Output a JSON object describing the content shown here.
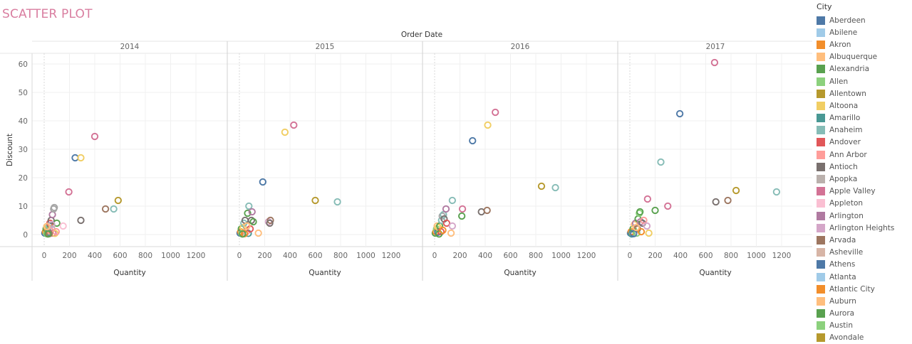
{
  "page": {
    "title": "SCATTER PLOT"
  },
  "chart_data": {
    "type": "scatter",
    "column_header": "Order Date",
    "xlabel": "Quantity",
    "ylabel": "Discount",
    "xlim": [
      -80,
      1230
    ],
    "ylim": [
      -3,
      65
    ],
    "x_ticks": [
      0,
      200,
      400,
      600,
      800,
      1000,
      1200
    ],
    "y_ticks": [
      0,
      10,
      20,
      30,
      40,
      50,
      60
    ],
    "grid": true,
    "marker": "open-circle",
    "legend": {
      "title": "City",
      "position": "right"
    },
    "panels": [
      {
        "label": "2014",
        "points": [
          {
            "x": 5,
            "y": 0.5,
            "c": "#4e79a7"
          },
          {
            "x": 10,
            "y": 1,
            "c": "#f28e2b"
          },
          {
            "x": 15,
            "y": 2,
            "c": "#59a14f"
          },
          {
            "x": 20,
            "y": 0.3,
            "c": "#8cd17d"
          },
          {
            "x": 25,
            "y": 1.5,
            "c": "#b6992d"
          },
          {
            "x": 30,
            "y": 2.5,
            "c": "#f1ce63"
          },
          {
            "x": 35,
            "y": 0.8,
            "c": "#499894"
          },
          {
            "x": 40,
            "y": 3,
            "c": "#86bcb6"
          },
          {
            "x": 45,
            "y": 4,
            "c": "#e15759"
          },
          {
            "x": 50,
            "y": 1.2,
            "c": "#ff9d9a"
          },
          {
            "x": 55,
            "y": 5,
            "c": "#79706e"
          },
          {
            "x": 60,
            "y": 2,
            "c": "#bab0ac"
          },
          {
            "x": 65,
            "y": 7,
            "c": "#b07aa1"
          },
          {
            "x": 70,
            "y": 0.5,
            "c": "#d37295"
          },
          {
            "x": 75,
            "y": 9,
            "c": "#a5a5a5"
          },
          {
            "x": 80,
            "y": 9.5,
            "c": "#a5a5a5"
          },
          {
            "x": 85,
            "y": 0.4,
            "c": "#f1ce63"
          },
          {
            "x": 95,
            "y": 1,
            "c": "#ff9d9a"
          },
          {
            "x": 100,
            "y": 4,
            "c": "#59a14f"
          },
          {
            "x": 150,
            "y": 3,
            "c": "#fabfd2"
          },
          {
            "x": 195,
            "y": 15,
            "c": "#d37295"
          },
          {
            "x": 245,
            "y": 27,
            "c": "#4e79a7"
          },
          {
            "x": 290,
            "y": 5,
            "c": "#79706e"
          },
          {
            "x": 290,
            "y": 27,
            "c": "#f1ce63"
          },
          {
            "x": 400,
            "y": 34.5,
            "c": "#d37295"
          },
          {
            "x": 485,
            "y": 9,
            "c": "#9d7660"
          },
          {
            "x": 550,
            "y": 9,
            "c": "#86bcb6"
          },
          {
            "x": 585,
            "y": 12,
            "c": "#b6992d"
          },
          {
            "x": 40,
            "y": 0.3,
            "c": "#9d7660"
          },
          {
            "x": 60,
            "y": 3.5,
            "c": "#d4a6c8"
          },
          {
            "x": 30,
            "y": 0.2,
            "c": "#59a14f"
          },
          {
            "x": 20,
            "y": 2.8,
            "c": "#ffbe7d"
          }
        ]
      },
      {
        "label": "2015",
        "points": [
          {
            "x": 5,
            "y": 0.5,
            "c": "#4e79a7"
          },
          {
            "x": 10,
            "y": 1,
            "c": "#f28e2b"
          },
          {
            "x": 15,
            "y": 2,
            "c": "#59a14f"
          },
          {
            "x": 20,
            "y": 0.3,
            "c": "#8cd17d"
          },
          {
            "x": 30,
            "y": 2.5,
            "c": "#f1ce63"
          },
          {
            "x": 35,
            "y": 4,
            "c": "#86bcb6"
          },
          {
            "x": 45,
            "y": 5,
            "c": "#79706e"
          },
          {
            "x": 55,
            "y": 1,
            "c": "#ff9d9a"
          },
          {
            "x": 65,
            "y": 7.5,
            "c": "#59a14f"
          },
          {
            "x": 70,
            "y": 0.4,
            "c": "#499894"
          },
          {
            "x": 75,
            "y": 10,
            "c": "#86bcb6"
          },
          {
            "x": 85,
            "y": 2,
            "c": "#e15759"
          },
          {
            "x": 95,
            "y": 5,
            "c": "#79706e"
          },
          {
            "x": 100,
            "y": 8,
            "c": "#b07aa1"
          },
          {
            "x": 110,
            "y": 4.5,
            "c": "#59a14f"
          },
          {
            "x": 150,
            "y": 0.5,
            "c": "#ffbe7d"
          },
          {
            "x": 185,
            "y": 18.5,
            "c": "#4e79a7"
          },
          {
            "x": 230,
            "y": 4.5,
            "c": "#d4a6c8"
          },
          {
            "x": 245,
            "y": 5,
            "c": "#9d7660"
          },
          {
            "x": 240,
            "y": 4,
            "c": "#79706e"
          },
          {
            "x": 360,
            "y": 36,
            "c": "#f1ce63"
          },
          {
            "x": 430,
            "y": 38.5,
            "c": "#d37295"
          },
          {
            "x": 600,
            "y": 12,
            "c": "#b6992d"
          },
          {
            "x": 775,
            "y": 11.5,
            "c": "#86bcb6"
          },
          {
            "x": 40,
            "y": 0.3,
            "c": "#f28e2b"
          },
          {
            "x": 60,
            "y": 3,
            "c": "#ffbe7d"
          },
          {
            "x": 25,
            "y": 0.2,
            "c": "#59a14f"
          }
        ]
      },
      {
        "label": "2016",
        "points": [
          {
            "x": 5,
            "y": 0.5,
            "c": "#59a14f"
          },
          {
            "x": 10,
            "y": 1,
            "c": "#f28e2b"
          },
          {
            "x": 15,
            "y": 2,
            "c": "#8cd17d"
          },
          {
            "x": 20,
            "y": 3,
            "c": "#ffbe7d"
          },
          {
            "x": 25,
            "y": 0.8,
            "c": "#4e79a7"
          },
          {
            "x": 30,
            "y": 2.5,
            "c": "#f1ce63"
          },
          {
            "x": 40,
            "y": 3,
            "c": "#59a14f"
          },
          {
            "x": 50,
            "y": 1,
            "c": "#e15759"
          },
          {
            "x": 55,
            "y": 5,
            "c": "#86bcb6"
          },
          {
            "x": 60,
            "y": 6.5,
            "c": "#a5a5a5"
          },
          {
            "x": 70,
            "y": 7,
            "c": "#86bcb6"
          },
          {
            "x": 75,
            "y": 5.5,
            "c": "#79706e"
          },
          {
            "x": 90,
            "y": 9,
            "c": "#b07aa1"
          },
          {
            "x": 95,
            "y": 4,
            "c": "#e15759"
          },
          {
            "x": 130,
            "y": 0.5,
            "c": "#ffbe7d"
          },
          {
            "x": 140,
            "y": 3,
            "c": "#d4a6c8"
          },
          {
            "x": 140,
            "y": 12,
            "c": "#86bcb6"
          },
          {
            "x": 215,
            "y": 6.5,
            "c": "#59a14f"
          },
          {
            "x": 220,
            "y": 9,
            "c": "#d37295"
          },
          {
            "x": 300,
            "y": 33,
            "c": "#4e79a7"
          },
          {
            "x": 370,
            "y": 8,
            "c": "#79706e"
          },
          {
            "x": 415,
            "y": 8.5,
            "c": "#9d7660"
          },
          {
            "x": 420,
            "y": 38.5,
            "c": "#f1ce63"
          },
          {
            "x": 480,
            "y": 43,
            "c": "#d37295"
          },
          {
            "x": 845,
            "y": 17,
            "c": "#b6992d"
          },
          {
            "x": 955,
            "y": 16.5,
            "c": "#86bcb6"
          },
          {
            "x": 35,
            "y": 0.2,
            "c": "#59a14f"
          },
          {
            "x": 65,
            "y": 1.5,
            "c": "#f28e2b"
          }
        ]
      },
      {
        "label": "2017",
        "points": [
          {
            "x": 5,
            "y": 0.5,
            "c": "#4e79a7"
          },
          {
            "x": 10,
            "y": 1,
            "c": "#f28e2b"
          },
          {
            "x": 15,
            "y": 0.2,
            "c": "#499894"
          },
          {
            "x": 25,
            "y": 2,
            "c": "#59a14f"
          },
          {
            "x": 35,
            "y": 3.5,
            "c": "#ffbe7d"
          },
          {
            "x": 45,
            "y": 4,
            "c": "#b07aa1"
          },
          {
            "x": 55,
            "y": 0.5,
            "c": "#8cd17d"
          },
          {
            "x": 60,
            "y": 2,
            "c": "#9d7660"
          },
          {
            "x": 65,
            "y": 5.5,
            "c": "#59a14f"
          },
          {
            "x": 75,
            "y": 7.5,
            "c": "#8cd17d"
          },
          {
            "x": 80,
            "y": 8,
            "c": "#59a14f"
          },
          {
            "x": 85,
            "y": 4.5,
            "c": "#b07aa1"
          },
          {
            "x": 90,
            "y": 1,
            "c": "#f28e2b"
          },
          {
            "x": 100,
            "y": 4,
            "c": "#79706e"
          },
          {
            "x": 110,
            "y": 5,
            "c": "#ff9d9a"
          },
          {
            "x": 135,
            "y": 3,
            "c": "#d4a6c8"
          },
          {
            "x": 140,
            "y": 12.5,
            "c": "#d37295"
          },
          {
            "x": 150,
            "y": 0.5,
            "c": "#f1ce63"
          },
          {
            "x": 200,
            "y": 8.5,
            "c": "#59a14f"
          },
          {
            "x": 245,
            "y": 25.5,
            "c": "#86bcb6"
          },
          {
            "x": 300,
            "y": 10,
            "c": "#d37295"
          },
          {
            "x": 395,
            "y": 42.5,
            "c": "#4e79a7"
          },
          {
            "x": 680,
            "y": 11.5,
            "c": "#79706e"
          },
          {
            "x": 670,
            "y": 60.5,
            "c": "#d37295"
          },
          {
            "x": 775,
            "y": 12,
            "c": "#9d7660"
          },
          {
            "x": 840,
            "y": 15.5,
            "c": "#b6992d"
          },
          {
            "x": 1160,
            "y": 15,
            "c": "#86bcb6"
          },
          {
            "x": 30,
            "y": 0.3,
            "c": "#4e79a7"
          },
          {
            "x": 50,
            "y": 2.5,
            "c": "#ffbe7d"
          }
        ]
      }
    ]
  },
  "legend": {
    "title": "City",
    "items": [
      {
        "label": "Aberdeen",
        "color": "#4e79a7"
      },
      {
        "label": "Abilene",
        "color": "#a0cbe8"
      },
      {
        "label": "Akron",
        "color": "#f28e2b"
      },
      {
        "label": "Albuquerque",
        "color": "#ffbe7d"
      },
      {
        "label": "Alexandria",
        "color": "#59a14f"
      },
      {
        "label": "Allen",
        "color": "#8cd17d"
      },
      {
        "label": "Allentown",
        "color": "#b6992d"
      },
      {
        "label": "Altoona",
        "color": "#f1ce63"
      },
      {
        "label": "Amarillo",
        "color": "#499894"
      },
      {
        "label": "Anaheim",
        "color": "#86bcb6"
      },
      {
        "label": "Andover",
        "color": "#e15759"
      },
      {
        "label": "Ann Arbor",
        "color": "#ff9d9a"
      },
      {
        "label": "Antioch",
        "color": "#79706e"
      },
      {
        "label": "Apopka",
        "color": "#bab0ac"
      },
      {
        "label": "Apple Valley",
        "color": "#d37295"
      },
      {
        "label": "Appleton",
        "color": "#fabfd2"
      },
      {
        "label": "Arlington",
        "color": "#b07aa1"
      },
      {
        "label": "Arlington Heights",
        "color": "#d4a6c8"
      },
      {
        "label": "Arvada",
        "color": "#9d7660"
      },
      {
        "label": "Asheville",
        "color": "#d7b5a6"
      },
      {
        "label": "Athens",
        "color": "#4e79a7"
      },
      {
        "label": "Atlanta",
        "color": "#a0cbe8"
      },
      {
        "label": "Atlantic City",
        "color": "#f28e2b"
      },
      {
        "label": "Auburn",
        "color": "#ffbe7d"
      },
      {
        "label": "Aurora",
        "color": "#59a14f"
      },
      {
        "label": "Austin",
        "color": "#8cd17d"
      },
      {
        "label": "Avondale",
        "color": "#b6992d"
      }
    ]
  }
}
